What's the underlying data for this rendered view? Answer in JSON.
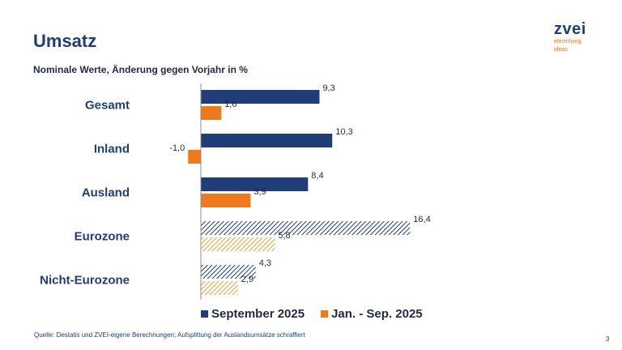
{
  "header": {
    "title": "Umsatz",
    "subtitle": "Nominale Werte, Änderung gegen Vorjahr in %"
  },
  "logo": {
    "word": "zvei",
    "tagline_1": "electrifying",
    "tagline_2": "ideas"
  },
  "colors": {
    "sep": "#1f3e77",
    "jan": "#ee7a1d",
    "jan_hatch": "#e5a23a",
    "text": "#1f2a44"
  },
  "chart_data": {
    "type": "bar",
    "orientation": "horizontal",
    "title": "Umsatz",
    "subtitle": "Nominale Werte, Änderung gegen Vorjahr in %",
    "categories": [
      "Gesamt",
      "Inland",
      "Ausland",
      "Eurozone",
      "Nicht-Eurozone"
    ],
    "hatched_categories": [
      "Eurozone",
      "Nicht-Eurozone"
    ],
    "series": [
      {
        "name": "September 2025",
        "values": [
          9.3,
          10.3,
          8.4,
          16.4,
          4.3
        ],
        "labels": [
          "9,3",
          "10,3",
          "8,4",
          "16,4",
          "4,3"
        ]
      },
      {
        "name": "Jan. - Sep. 2025",
        "values": [
          1.6,
          -1.0,
          3.9,
          5.8,
          2.9
        ],
        "labels": [
          "1,6",
          "-1,0",
          "3,9",
          "5,8",
          "2,9"
        ]
      }
    ],
    "xlim": [
      -1,
      16.4
    ],
    "legend": "bottom",
    "grid": false
  },
  "legend": {
    "items": [
      "September 2025",
      "Jan. - Sep. 2025"
    ]
  },
  "footer": {
    "source": "Quelle: Destatis und ZVEI-eigene Berechnungen; Aufsplittung der Auslandsumsätze schraffiert",
    "page": "3"
  }
}
